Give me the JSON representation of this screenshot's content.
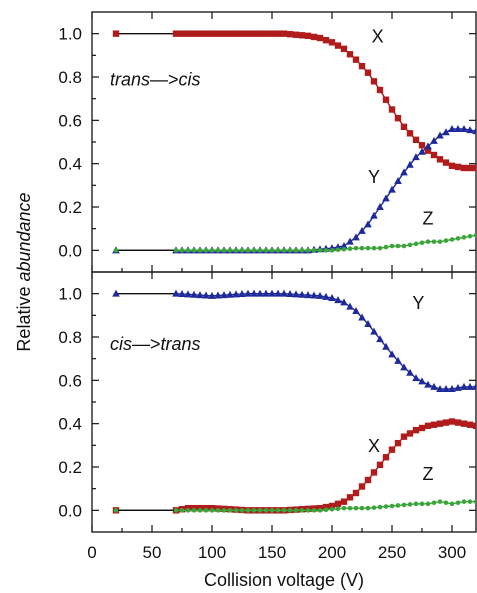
{
  "chart_data": {
    "type": "line",
    "layout": "two vertically stacked panels sharing the x axis",
    "xlabel": "Collision voltage (V)",
    "ylabel": [
      "Relative ",
      "abundance"
    ],
    "xlim": [
      0,
      320
    ],
    "x_ticks": [
      "0",
      "50",
      "100",
      "150",
      "200",
      "250",
      "300"
    ],
    "grid": false,
    "colors": {
      "X": "#b01c1c",
      "Y": "#1f2a9a",
      "Z": "#3aa53a",
      "connector": "#111111"
    },
    "markers": {
      "X": "square",
      "Y": "triangle",
      "Z": "circle"
    },
    "panels": [
      {
        "id": "top",
        "annotation": [
          "trans",
          "—>",
          "cis"
        ],
        "ylim": [
          -0.1,
          1.1
        ],
        "y_ticks": [
          "0.0",
          "0.2",
          "0.4",
          "0.6",
          "0.8",
          "1.0"
        ],
        "series": [
          {
            "name": "X",
            "x": [
              20,
              70,
              100,
              130,
              160,
              180,
              190,
              200,
              210,
              220,
              230,
              240,
              250,
              260,
              270,
              280,
              290,
              300,
              310,
              320
            ],
            "y": [
              1.0,
              1.0,
              1.0,
              1.0,
              1.0,
              0.99,
              0.98,
              0.96,
              0.93,
              0.88,
              0.82,
              0.74,
              0.65,
              0.57,
              0.51,
              0.46,
              0.42,
              0.39,
              0.38,
              0.38
            ]
          },
          {
            "name": "Y",
            "x": [
              20,
              70,
              100,
              130,
              160,
              180,
              200,
              210,
              220,
              230,
              240,
              250,
              260,
              270,
              280,
              290,
              300,
              310,
              320
            ],
            "y": [
              0.0,
              0.0,
              0.0,
              0.0,
              0.0,
              0.0,
              0.01,
              0.02,
              0.06,
              0.12,
              0.2,
              0.28,
              0.36,
              0.43,
              0.48,
              0.53,
              0.56,
              0.56,
              0.55
            ]
          },
          {
            "name": "Z",
            "x": [
              20,
              70,
              100,
              130,
              160,
              180,
              200,
              220,
              240,
              250,
              260,
              270,
              280,
              290,
              300,
              310,
              320
            ],
            "y": [
              0.0,
              0.0,
              0.0,
              0.0,
              0.0,
              0.0,
              0.0,
              0.01,
              0.01,
              0.02,
              0.02,
              0.03,
              0.04,
              0.04,
              0.05,
              0.06,
              0.07
            ]
          }
        ],
        "labels": [
          {
            "text": "X",
            "x": 238,
            "y": 0.96
          },
          {
            "text": "Y",
            "x": 235,
            "y": 0.31
          },
          {
            "text": "Z",
            "x": 280,
            "y": 0.12
          }
        ]
      },
      {
        "id": "bottom",
        "annotation": [
          "cis",
          "—>",
          "trans"
        ],
        "ylim": [
          -0.1,
          1.1
        ],
        "y_ticks": [
          "0.0",
          "0.2",
          "0.4",
          "0.6",
          "0.8",
          "1.0"
        ],
        "series": [
          {
            "name": "Y",
            "x": [
              20,
              70,
              100,
              130,
              160,
              190,
              200,
              210,
              220,
              230,
              240,
              250,
              260,
              270,
              280,
              290,
              300,
              310,
              320
            ],
            "y": [
              1.0,
              1.0,
              0.99,
              1.0,
              1.0,
              0.99,
              0.98,
              0.96,
              0.92,
              0.86,
              0.79,
              0.72,
              0.66,
              0.61,
              0.58,
              0.56,
              0.56,
              0.57,
              0.57
            ]
          },
          {
            "name": "X",
            "x": [
              20,
              70,
              80,
              100,
              130,
              160,
              190,
              200,
              210,
              220,
              230,
              240,
              250,
              260,
              270,
              280,
              290,
              300,
              310,
              320
            ],
            "y": [
              0.0,
              0.0,
              0.01,
              0.01,
              0.0,
              0.0,
              0.01,
              0.02,
              0.04,
              0.08,
              0.14,
              0.21,
              0.28,
              0.34,
              0.37,
              0.39,
              0.4,
              0.41,
              0.4,
              0.39
            ]
          },
          {
            "name": "Z",
            "x": [
              20,
              70,
              100,
              130,
              160,
              190,
              210,
              230,
              250,
              270,
              280,
              290,
              300,
              310,
              320
            ],
            "y": [
              0.0,
              0.0,
              0.0,
              0.0,
              0.0,
              0.0,
              0.01,
              0.01,
              0.02,
              0.03,
              0.03,
              0.04,
              0.03,
              0.04,
              0.04
            ]
          }
        ],
        "labels": [
          {
            "text": "Y",
            "x": 272,
            "y": 0.93
          },
          {
            "text": "X",
            "x": 235,
            "y": 0.27
          },
          {
            "text": "Z",
            "x": 280,
            "y": 0.14
          }
        ]
      }
    ]
  }
}
